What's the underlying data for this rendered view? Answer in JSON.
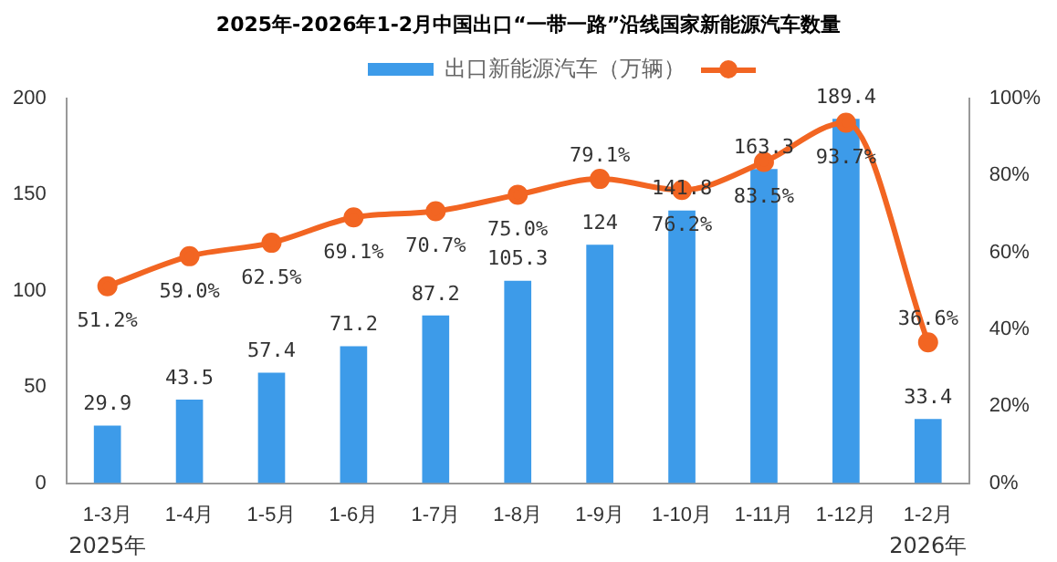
{
  "chart_data": {
    "type": "bar",
    "title": "2025年-2026年1-2月中国出口“一带一路”沿线国家新能源汽车数量",
    "categories": [
      "1-3月",
      "1-4月",
      "1-5月",
      "1-6月",
      "1-7月",
      "1-8月",
      "1-9月",
      "1-10月",
      "1-11月",
      "1-12月",
      "1-2月"
    ],
    "series": [
      {
        "name": "出口新能源汽车（万辆）",
        "color": "#3d9be9",
        "values": [
          29.9,
          43.5,
          57.4,
          71.2,
          87.2,
          105.3,
          124,
          141.8,
          163.3,
          189.4,
          33.4
        ],
        "value_labels": [
          "29.9",
          "43.5",
          "57.4",
          "71.2",
          "87.2",
          "105.3",
          "124",
          "141.8",
          "163.3",
          "189.4",
          "33.4"
        ]
      },
      {
        "type": "line",
        "axis": "y2",
        "color": "#f26522",
        "marker": "circle",
        "values": [
          51.2,
          59.0,
          62.5,
          69.1,
          70.7,
          75.0,
          79.1,
          76.2,
          83.5,
          93.7,
          36.6
        ],
        "value_labels": [
          "51.2%",
          "59.0%",
          "62.5%",
          "69.1%",
          "70.7%",
          "75.0%",
          "79.1%",
          "76.2%",
          "83.5%",
          "93.7%",
          "36.6%"
        ]
      }
    ],
    "ylim": [
      0,
      200
    ],
    "yticks": [
      0,
      50,
      100,
      150,
      200
    ],
    "y2lim": [
      0,
      100
    ],
    "y2ticks": [
      {
        "value": 0,
        "label": "0%"
      },
      {
        "value": 20,
        "label": "20%"
      },
      {
        "value": 40,
        "label": "40%"
      },
      {
        "value": 60,
        "label": "60%"
      },
      {
        "value": 80,
        "label": "80%"
      },
      {
        "value": 100,
        "label": "100%"
      }
    ],
    "grid": false,
    "legend": "top",
    "annotations": [
      "2025年",
      "2026年"
    ]
  }
}
